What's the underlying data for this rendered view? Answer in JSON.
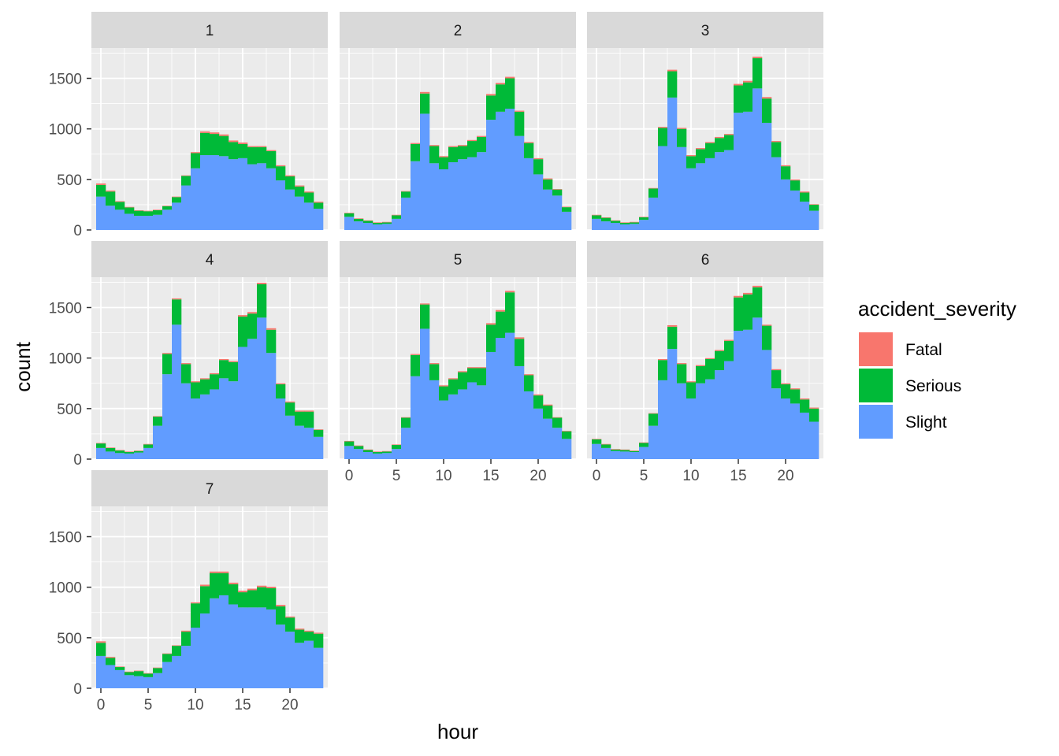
{
  "colors": {
    "panel_bg": "#ebebeb",
    "grid": "#ffffff",
    "strip_bg": "#d9d9d9",
    "fatal": "#F8766D",
    "serious": "#00BA38",
    "slight": "#619CFF"
  },
  "chart_data": {
    "type": "bar",
    "stacked": true,
    "facet_by": "day_of_week",
    "xlabel": "hour",
    "ylabel": "count",
    "xlim": [
      -1,
      24
    ],
    "ylim": [
      0,
      1800
    ],
    "x_ticks": [
      0,
      5,
      10,
      15,
      20
    ],
    "y_ticks": [
      0,
      500,
      1000,
      1500
    ],
    "grid": true,
    "legend": {
      "title": "accident_severity",
      "position": "right",
      "entries": [
        "Fatal",
        "Serious",
        "Slight"
      ]
    },
    "hours": [
      0,
      1,
      2,
      3,
      4,
      5,
      6,
      7,
      8,
      9,
      10,
      11,
      12,
      13,
      14,
      15,
      16,
      17,
      18,
      19,
      20,
      21,
      22,
      23
    ],
    "panels": [
      {
        "label": "1",
        "slight": [
          330,
          240,
          200,
          160,
          140,
          140,
          150,
          200,
          270,
          440,
          610,
          740,
          740,
          730,
          700,
          710,
          650,
          660,
          610,
          490,
          400,
          330,
          270,
          210
        ],
        "serious": [
          115,
          140,
          78,
          63,
          50,
          45,
          45,
          35,
          55,
          95,
          150,
          220,
          210,
          200,
          170,
          140,
          170,
          160,
          170,
          140,
          130,
          100,
          100,
          60
        ],
        "fatal": [
          15,
          10,
          7,
          5,
          5,
          5,
          5,
          5,
          5,
          5,
          10,
          15,
          15,
          15,
          15,
          15,
          10,
          10,
          10,
          10,
          10,
          10,
          10,
          10
        ]
      },
      {
        "label": "2",
        "slight": [
          130,
          85,
          70,
          55,
          60,
          110,
          320,
          680,
          1150,
          660,
          600,
          670,
          700,
          720,
          770,
          1090,
          1170,
          1200,
          930,
          710,
          550,
          400,
          340,
          180
        ],
        "serious": [
          35,
          25,
          20,
          15,
          15,
          35,
          60,
          170,
          200,
          170,
          120,
          150,
          130,
          160,
          150,
          240,
          270,
          300,
          240,
          150,
          150,
          100,
          60,
          45
        ],
        "fatal": [
          5,
          5,
          5,
          5,
          5,
          5,
          5,
          10,
          15,
          10,
          10,
          10,
          10,
          10,
          10,
          15,
          15,
          15,
          10,
          10,
          10,
          10,
          5,
          5
        ]
      },
      {
        "label": "3",
        "slight": [
          110,
          85,
          70,
          55,
          60,
          100,
          320,
          830,
          1310,
          820,
          610,
          660,
          710,
          770,
          790,
          1160,
          1170,
          1400,
          1060,
          720,
          500,
          390,
          280,
          190
        ],
        "serious": [
          35,
          35,
          20,
          15,
          15,
          25,
          90,
          180,
          260,
          180,
          120,
          140,
          150,
          140,
          150,
          270,
          290,
          300,
          240,
          150,
          130,
          100,
          90,
          60
        ],
        "fatal": [
          5,
          5,
          5,
          5,
          5,
          5,
          5,
          10,
          15,
          10,
          10,
          10,
          10,
          10,
          10,
          15,
          15,
          15,
          15,
          10,
          10,
          10,
          10,
          5
        ]
      },
      {
        "label": "4",
        "slight": [
          110,
          75,
          60,
          55,
          65,
          110,
          330,
          840,
          1330,
          750,
          600,
          640,
          690,
          800,
          770,
          1110,
          1190,
          1400,
          1050,
          600,
          430,
          330,
          310,
          220
        ],
        "serious": [
          45,
          35,
          25,
          15,
          15,
          35,
          90,
          200,
          250,
          190,
          160,
          150,
          150,
          180,
          190,
          300,
          250,
          330,
          230,
          140,
          130,
          140,
          160,
          70
        ],
        "fatal": [
          5,
          5,
          5,
          5,
          5,
          5,
          5,
          10,
          10,
          10,
          10,
          10,
          10,
          10,
          10,
          15,
          15,
          15,
          15,
          10,
          10,
          10,
          10,
          5
        ]
      },
      {
        "label": "5",
        "slight": [
          130,
          100,
          70,
          55,
          60,
          100,
          310,
          820,
          1290,
          780,
          580,
          640,
          690,
          760,
          730,
          1060,
          1200,
          1250,
          920,
          670,
          500,
          400,
          310,
          200
        ],
        "serious": [
          45,
          30,
          20,
          15,
          15,
          40,
          100,
          210,
          240,
          160,
          140,
          150,
          170,
          140,
          170,
          270,
          260,
          400,
          270,
          160,
          130,
          130,
          100,
          75
        ],
        "fatal": [
          5,
          5,
          5,
          5,
          5,
          5,
          5,
          10,
          10,
          10,
          10,
          10,
          10,
          10,
          10,
          15,
          15,
          15,
          15,
          10,
          10,
          10,
          5,
          5
        ]
      },
      {
        "label": "6",
        "slight": [
          150,
          110,
          80,
          75,
          70,
          120,
          330,
          780,
          1090,
          750,
          600,
          750,
          790,
          880,
          970,
          1270,
          1280,
          1400,
          1080,
          700,
          600,
          550,
          460,
          370
        ],
        "serious": [
          45,
          35,
          15,
          15,
          10,
          40,
          120,
          200,
          220,
          190,
          160,
          170,
          200,
          190,
          200,
          330,
          350,
          300,
          240,
          180,
          140,
          140,
          130,
          130
        ],
        "fatal": [
          5,
          5,
          5,
          5,
          5,
          5,
          5,
          10,
          15,
          10,
          10,
          10,
          10,
          10,
          10,
          15,
          15,
          15,
          10,
          10,
          10,
          10,
          10,
          10
        ]
      },
      {
        "label": "7",
        "slight": [
          320,
          230,
          180,
          130,
          120,
          110,
          150,
          260,
          320,
          420,
          600,
          740,
          890,
          920,
          830,
          800,
          800,
          800,
          780,
          630,
          560,
          450,
          470,
          400
        ],
        "serious": [
          130,
          70,
          30,
          30,
          50,
          35,
          50,
          80,
          100,
          140,
          240,
          270,
          250,
          220,
          200,
          150,
          170,
          200,
          210,
          180,
          140,
          130,
          90,
          140
        ],
        "fatal": [
          15,
          10,
          5,
          5,
          5,
          5,
          5,
          5,
          5,
          10,
          10,
          15,
          15,
          15,
          15,
          15,
          15,
          15,
          15,
          15,
          10,
          10,
          10,
          10
        ]
      }
    ]
  }
}
